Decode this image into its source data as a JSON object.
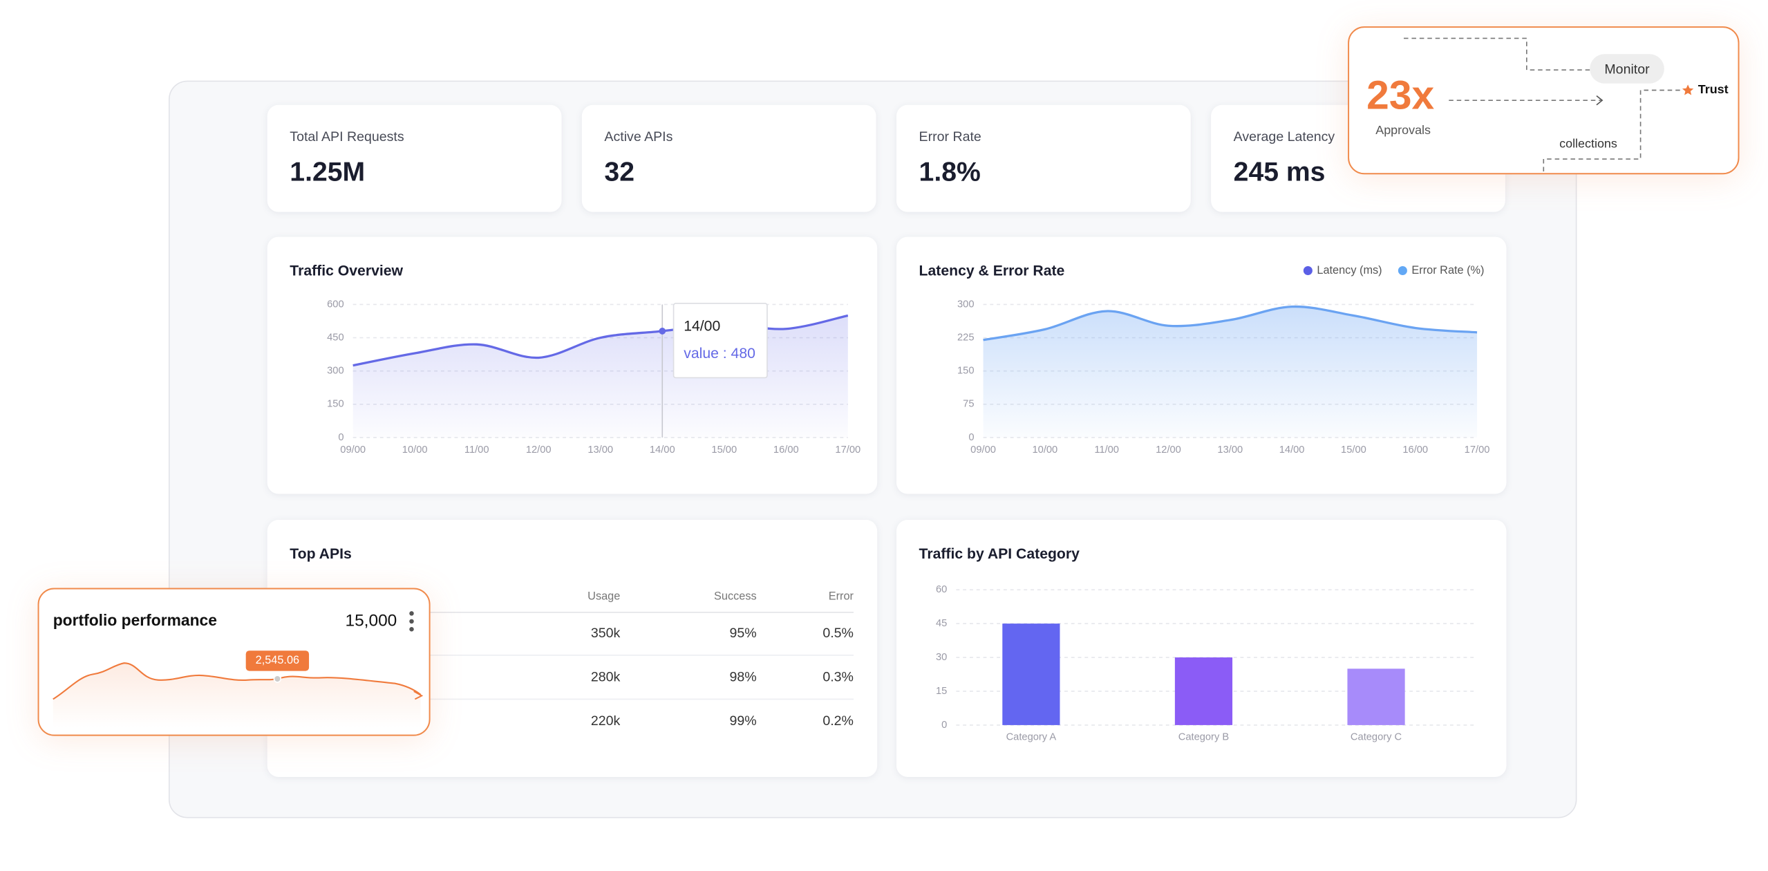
{
  "kpis": [
    {
      "label": "Total API Requests",
      "value": "1.25M"
    },
    {
      "label": "Active APIs",
      "value": "32"
    },
    {
      "label": "Error Rate",
      "value": "1.8%"
    },
    {
      "label": "Average Latency",
      "value": "245 ms"
    }
  ],
  "chart_data": [
    {
      "type": "line",
      "title": "Traffic Overview",
      "categories": [
        "09/00",
        "10/00",
        "11/00",
        "12/00",
        "13/00",
        "14/00",
        "15/00",
        "16/00",
        "17/00"
      ],
      "values": [
        325,
        380,
        420,
        360,
        450,
        480,
        510,
        490,
        550
      ],
      "color": "#6469e6",
      "ylim": [
        0,
        600
      ],
      "yticks": [
        0,
        150,
        300,
        450,
        600
      ],
      "grid": true,
      "tooltip": {
        "category": "14/00",
        "text": "value : 480"
      }
    },
    {
      "type": "line",
      "title": "Latency & Error Rate",
      "categories": [
        "09/00",
        "10/00",
        "11/00",
        "12/00",
        "13/00",
        "14/00",
        "15/00",
        "16/00",
        "17/00"
      ],
      "values": [
        220,
        244,
        285,
        252,
        265,
        295,
        275,
        247,
        237
      ],
      "color": "#6aa3f2",
      "ylim": [
        0,
        300
      ],
      "yticks": [
        0,
        75,
        150,
        225,
        300
      ],
      "grid": true,
      "legend": [
        {
          "name": "Latency (ms)",
          "color": "#5b5fe6"
        },
        {
          "name": "Error Rate (%)",
          "color": "#62a8f5"
        }
      ]
    },
    {
      "type": "bar",
      "title": "Traffic by API Category",
      "categories": [
        "Category A",
        "Category B",
        "Category C"
      ],
      "values": [
        45,
        30,
        25
      ],
      "colors": [
        "#6366f1",
        "#8b5cf6",
        "#a78bfa"
      ],
      "ylim": [
        0,
        60
      ],
      "yticks": [
        0,
        15,
        30,
        45,
        60
      ],
      "grid": true
    }
  ],
  "top_apis": {
    "title": "Top APIs",
    "header": [
      "Usage",
      "Success",
      "Error"
    ],
    "rows": [
      [
        "350k",
        "95%",
        "0.5%"
      ],
      [
        "280k",
        "98%",
        "0.3%"
      ],
      [
        "220k",
        "99%",
        "0.2%"
      ]
    ]
  },
  "portfolio": {
    "title": "portfolio performance",
    "total": "15,000",
    "marker": "2,545.06"
  },
  "overlay": {
    "headline": "23x",
    "caption": "Approvals",
    "nodes": [
      "Monitor",
      "Trust",
      "collections"
    ]
  }
}
